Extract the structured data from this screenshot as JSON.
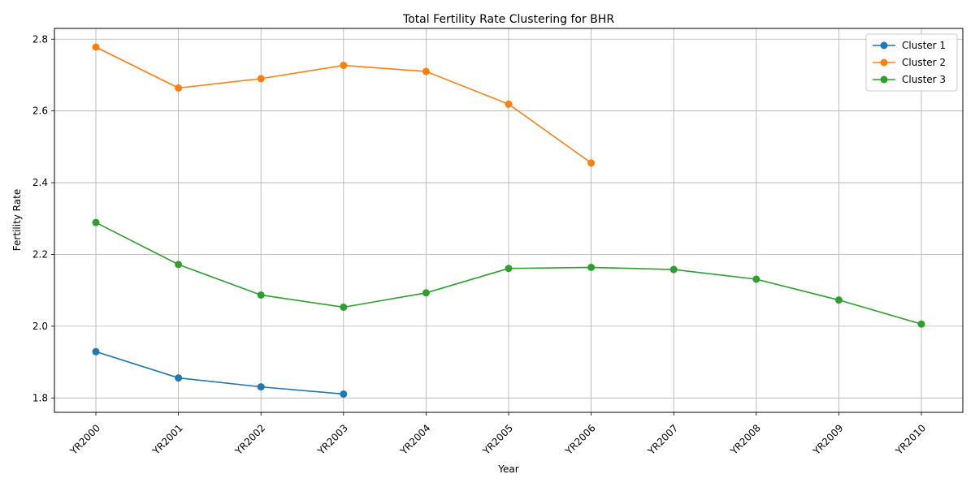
{
  "chart_data": {
    "type": "line",
    "title": "Total Fertility Rate Clustering for BHR",
    "xlabel": "Year",
    "ylabel": "Fertility Rate",
    "categories": [
      "YR2000",
      "YR2001",
      "YR2002",
      "YR2003",
      "YR2004",
      "YR2005",
      "YR2006",
      "YR2007",
      "YR2008",
      "YR2009",
      "YR2010"
    ],
    "ylim": [
      1.76,
      2.83
    ],
    "yticks": [
      1.8,
      2.0,
      2.2,
      2.4,
      2.6,
      2.8
    ],
    "ytick_labels": [
      "1.8",
      "2.0",
      "2.2",
      "2.4",
      "2.6",
      "2.8"
    ],
    "grid": true,
    "legend_position": "top-right",
    "series": [
      {
        "name": "Cluster 1",
        "color": "#1f77b4",
        "values": [
          1.929,
          1.856,
          1.831,
          1.811,
          null,
          null,
          null,
          null,
          null,
          null,
          null
        ]
      },
      {
        "name": "Cluster 2",
        "color": "#ff7f0e",
        "values": [
          2.778,
          2.664,
          2.69,
          2.727,
          2.71,
          2.619,
          2.455,
          null,
          null,
          null,
          null
        ]
      },
      {
        "name": "Cluster 3",
        "color": "#2ca02c",
        "values": [
          2.289,
          2.172,
          2.087,
          2.053,
          2.093,
          2.161,
          2.164,
          2.158,
          2.131,
          2.073,
          2.006
        ]
      }
    ]
  }
}
